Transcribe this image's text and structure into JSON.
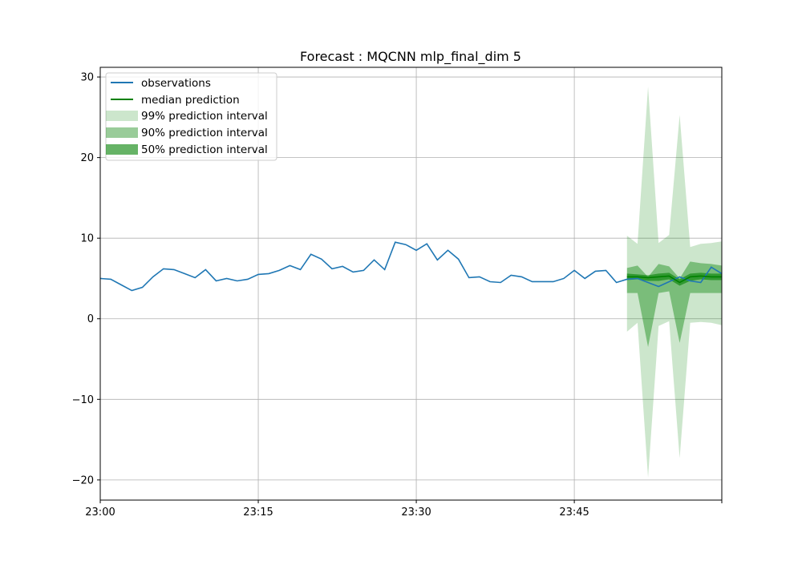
{
  "chart_data": {
    "type": "line",
    "title": "Forecast : MQCNN mlp_final_dim 5",
    "xlabel": "",
    "ylabel": "",
    "x_ticks": [
      "23:00",
      "23:15",
      "23:30",
      "23:45"
    ],
    "y_ticks": [
      -20,
      -10,
      0,
      10,
      20,
      30
    ],
    "xlim_minutes": [
      0,
      59
    ],
    "ylim": [
      -22.5,
      31.2
    ],
    "grid": true,
    "legend_position": "top-left",
    "legend": [
      "observations",
      "median prediction",
      "99% prediction interval",
      "90% prediction interval",
      "50% prediction interval"
    ],
    "colors": {
      "observations": "#1f77b4",
      "median": "#008000",
      "interval": "#008000",
      "grid": "#b0b0b0"
    },
    "observations": {
      "name": "observations",
      "x_minutes": [
        0,
        1,
        2,
        3,
        4,
        5,
        6,
        7,
        8,
        9,
        10,
        11,
        12,
        13,
        14,
        15,
        16,
        17,
        18,
        19,
        20,
        21,
        22,
        23,
        24,
        25,
        26,
        27,
        28,
        29,
        30,
        31,
        32,
        33,
        34,
        35,
        36,
        37,
        38,
        39,
        40,
        41,
        42,
        43,
        44,
        45,
        46,
        47,
        48,
        49,
        50,
        51,
        52,
        53,
        54,
        55,
        56,
        57,
        58,
        59
      ],
      "values": [
        5.0,
        4.9,
        4.2,
        3.5,
        3.9,
        5.2,
        6.2,
        6.1,
        5.6,
        5.1,
        6.1,
        4.7,
        5.0,
        4.7,
        4.9,
        5.5,
        5.6,
        6.0,
        6.6,
        6.1,
        8.0,
        7.4,
        6.2,
        6.5,
        5.8,
        6.0,
        7.3,
        6.1,
        9.5,
        9.2,
        8.5,
        9.3,
        7.3,
        8.5,
        7.4,
        5.1,
        5.2,
        4.6,
        4.5,
        5.4,
        5.2,
        4.6,
        4.6,
        4.6,
        5.0,
        6.0,
        5.0,
        5.9,
        6.0,
        4.5,
        4.9,
        5.0,
        4.5,
        4.0,
        4.6,
        5.2,
        4.7,
        4.5,
        6.4,
        5.6
      ]
    },
    "forecast": {
      "x_minutes": [
        50,
        51,
        52,
        53,
        54,
        55,
        56,
        57,
        58,
        59
      ],
      "median": [
        5.2,
        5.2,
        5.1,
        5.2,
        5.3,
        4.5,
        5.2,
        5.3,
        5.2,
        5.2
      ],
      "p50_lower": [
        4.8,
        4.9,
        4.7,
        4.7,
        4.9,
        4.1,
        4.7,
        4.9,
        4.8,
        4.8
      ],
      "p50_upper": [
        5.6,
        5.5,
        5.4,
        5.6,
        5.7,
        4.9,
        5.6,
        5.7,
        5.6,
        5.6
      ],
      "p90_lower": [
        3.2,
        3.2,
        -3.5,
        3.2,
        3.4,
        -3.0,
        3.2,
        3.2,
        3.2,
        3.2
      ],
      "p90_upper": [
        6.3,
        6.6,
        5.2,
        6.8,
        6.5,
        5.0,
        7.1,
        6.9,
        6.8,
        6.6
      ],
      "p99_lower": [
        -1.6,
        -0.5,
        -19.7,
        -0.9,
        -0.3,
        -17.3,
        -0.5,
        -0.4,
        -0.5,
        -0.8
      ],
      "p99_upper": [
        10.3,
        9.3,
        28.8,
        9.4,
        10.4,
        25.3,
        8.9,
        9.3,
        9.4,
        9.6
      ]
    }
  }
}
